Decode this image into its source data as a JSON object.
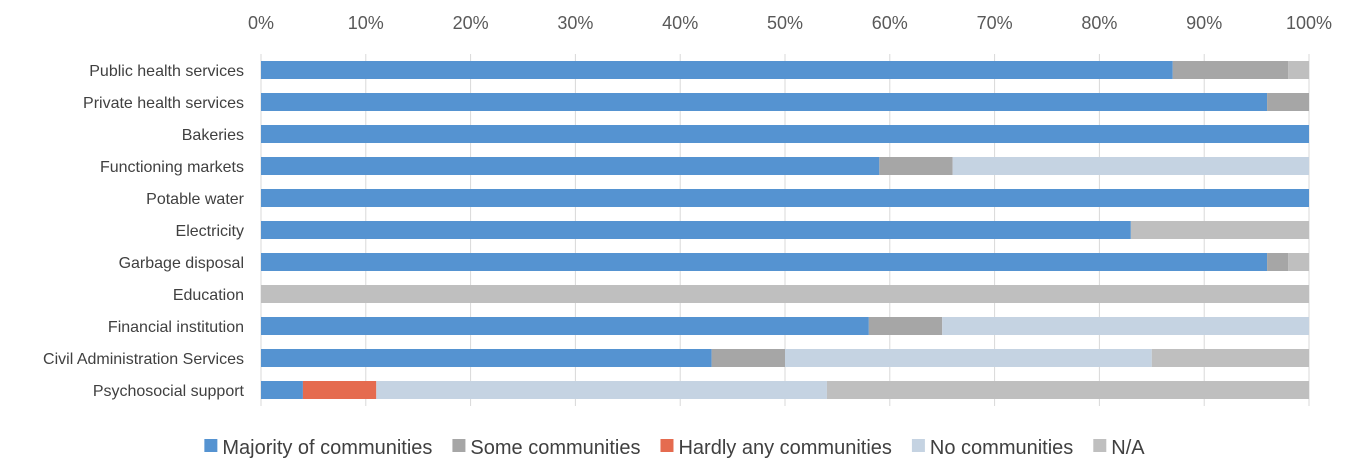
{
  "chart_data": {
    "type": "bar",
    "orientation": "horizontal",
    "stacked": "percent",
    "xaxis_position": "top",
    "xlim": [
      0,
      100
    ],
    "x_ticks": [
      "0%",
      "10%",
      "20%",
      "30%",
      "40%",
      "50%",
      "60%",
      "70%",
      "80%",
      "90%",
      "100%"
    ],
    "grid": true,
    "legend_position": "bottom",
    "categories": [
      "Public health services",
      "Private health services",
      "Bakeries",
      "Functioning markets",
      "Potable water",
      "Electricity",
      "Garbage disposal",
      "Education",
      "Financial institution",
      "Civil Administration Services",
      "Psychosocial support"
    ],
    "series": [
      {
        "name": "Majority of communities",
        "color": "#5593d1",
        "values": [
          87,
          96,
          100,
          59,
          100,
          83,
          96,
          0,
          58,
          43,
          4
        ]
      },
      {
        "name": "Some communities",
        "color": "#a6a6a6",
        "values": [
          11,
          4,
          0,
          7,
          0,
          0,
          2,
          0,
          7,
          7,
          0
        ]
      },
      {
        "name": "Hardly any communities",
        "color": "#e56b4f",
        "values": [
          0,
          0,
          0,
          0,
          0,
          0,
          0,
          0,
          0,
          0,
          7
        ]
      },
      {
        "name": "No communities",
        "color": "#c5d3e2",
        "values": [
          0,
          0,
          0,
          34,
          0,
          0,
          0,
          0,
          35,
          35,
          43
        ]
      },
      {
        "name": "N/A",
        "color": "#bfbfbf",
        "values": [
          2,
          0,
          0,
          0,
          0,
          17,
          2,
          100,
          0,
          15,
          46
        ]
      }
    ]
  }
}
